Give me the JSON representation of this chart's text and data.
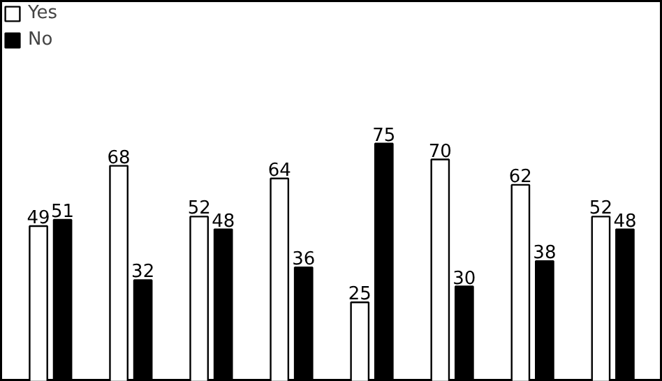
{
  "chart_data": {
    "type": "bar",
    "categories": [
      null,
      null,
      null,
      null,
      null,
      null,
      null,
      null
    ],
    "series": [
      {
        "name": "Yes",
        "color": "#ffffff",
        "values": [
          49,
          68,
          52,
          64,
          25,
          70,
          62,
          52
        ]
      },
      {
        "name": "No",
        "color": "#000000",
        "values": [
          51,
          32,
          48,
          36,
          75,
          30,
          38,
          48
        ]
      }
    ],
    "data_labels": true,
    "legend": "top left",
    "grid": false
  }
}
